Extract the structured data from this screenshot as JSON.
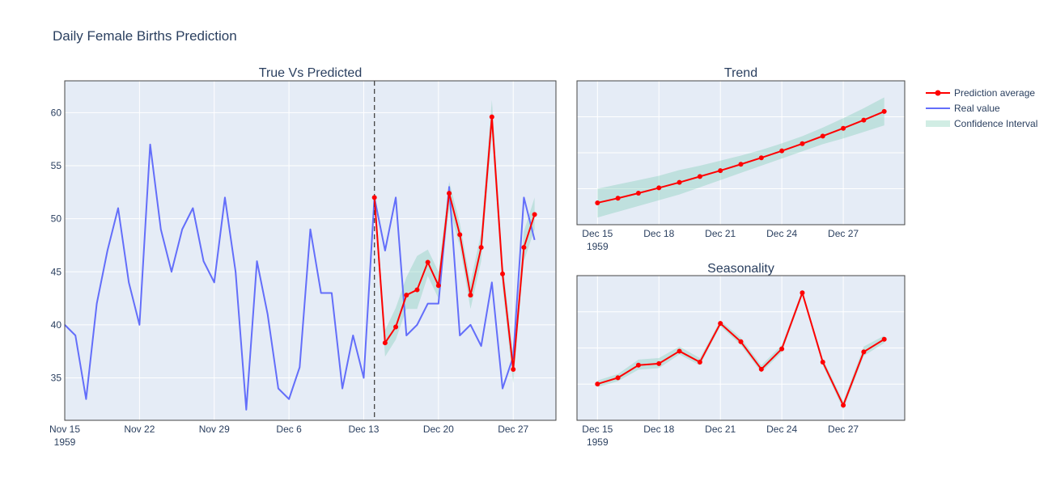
{
  "figure": {
    "title": "Daily Female Births Prediction"
  },
  "colors": {
    "real": "#636efa",
    "prediction": "#ff0000",
    "confidence": "rgba(102,194,165,0.3)",
    "plot_bg": "#e5ecf6",
    "grid": "#ffffff",
    "divider": "#444444"
  },
  "legend": {
    "prediction": "Prediction average",
    "real": "Real value",
    "confidence": "Confidence Interval"
  },
  "chart_data": [
    {
      "type": "line",
      "name": "true_vs_predicted",
      "title": "True Vs Predicted",
      "x_dates_start": "1959-11-15",
      "xlim": [
        "1959-11-15",
        "1959-12-31"
      ],
      "ylim": [
        31,
        63
      ],
      "xticks": [
        {
          "date": "1959-11-15",
          "label": "Nov 15",
          "sub": "1959"
        },
        {
          "date": "1959-11-22",
          "label": "Nov 22"
        },
        {
          "date": "1959-11-29",
          "label": "Nov 29"
        },
        {
          "date": "1959-12-06",
          "label": "Dec 6"
        },
        {
          "date": "1959-12-13",
          "label": "Dec 13"
        },
        {
          "date": "1959-12-20",
          "label": "Dec 20"
        },
        {
          "date": "1959-12-27",
          "label": "Dec 27"
        }
      ],
      "yticks": [
        35,
        40,
        45,
        50,
        55,
        60
      ],
      "divider_date": "1959-12-14",
      "real_values": [
        40,
        39,
        33,
        42,
        47,
        51,
        44,
        40,
        57,
        49,
        45,
        49,
        51,
        46,
        44,
        52,
        45,
        32,
        46,
        41,
        34,
        33,
        36,
        49,
        43,
        43,
        34,
        39,
        35,
        52,
        47,
        52,
        39,
        40,
        42,
        42,
        53,
        39,
        40,
        38,
        44,
        34,
        37,
        52,
        48
      ],
      "prediction_start": "1959-12-14",
      "prediction": [
        52.0,
        38.3,
        39.8,
        42.8,
        43.3,
        45.9,
        43.7,
        52.4,
        48.5,
        42.8,
        47.3,
        59.6,
        44.8,
        35.8,
        47.3,
        50.4
      ],
      "lower": [
        51.0,
        37.0,
        38.6,
        41.5,
        41.5,
        44.6,
        42.5,
        51.0,
        47.4,
        41.5,
        46.0,
        58.0,
        43.5,
        34.5,
        46.0,
        49.0
      ],
      "upper": [
        53.0,
        39.5,
        41.6,
        44.5,
        46.5,
        47.1,
        45.0,
        53.5,
        49.6,
        44.0,
        48.7,
        61.2,
        46.0,
        37.0,
        48.8,
        52.0
      ]
    },
    {
      "type": "line",
      "name": "trend",
      "title": "Trend",
      "xlim": [
        "1959-12-14",
        "1959-12-30"
      ],
      "ylim": [
        0,
        1
      ],
      "xticks": [
        {
          "date": "1959-12-15",
          "label": "Dec 15",
          "sub": "1959"
        },
        {
          "date": "1959-12-18",
          "label": "Dec 18"
        },
        {
          "date": "1959-12-21",
          "label": "Dec 21"
        },
        {
          "date": "1959-12-24",
          "label": "Dec 24"
        },
        {
          "date": "1959-12-27",
          "label": "Dec 27"
        }
      ],
      "prediction_start": "1959-12-15",
      "prediction": [
        0.152,
        0.184,
        0.219,
        0.256,
        0.294,
        0.335,
        0.376,
        0.42,
        0.465,
        0.513,
        0.563,
        0.616,
        0.67,
        0.727,
        0.787
      ],
      "lower": [
        0.05,
        0.09,
        0.13,
        0.17,
        0.21,
        0.26,
        0.31,
        0.36,
        0.41,
        0.46,
        0.51,
        0.56,
        0.6,
        0.645,
        0.69
      ],
      "upper": [
        0.25,
        0.28,
        0.31,
        0.34,
        0.38,
        0.41,
        0.445,
        0.48,
        0.52,
        0.565,
        0.615,
        0.675,
        0.74,
        0.81,
        0.885
      ]
    },
    {
      "type": "line",
      "name": "seasonality",
      "title": "Seasonality",
      "xlim": [
        "1959-12-14",
        "1959-12-30"
      ],
      "ylim": [
        0,
        1
      ],
      "xticks": [
        {
          "date": "1959-12-15",
          "label": "Dec 15",
          "sub": "1959"
        },
        {
          "date": "1959-12-18",
          "label": "Dec 18"
        },
        {
          "date": "1959-12-21",
          "label": "Dec 21"
        },
        {
          "date": "1959-12-24",
          "label": "Dec 24"
        },
        {
          "date": "1959-12-27",
          "label": "Dec 27"
        }
      ],
      "prediction_start": "1959-12-15",
      "prediction": [
        0.251,
        0.294,
        0.381,
        0.392,
        0.478,
        0.402,
        0.67,
        0.543,
        0.353,
        0.494,
        0.881,
        0.402,
        0.104,
        0.473,
        0.56
      ],
      "lower": [
        0.23,
        0.27,
        0.35,
        0.36,
        0.455,
        0.38,
        0.65,
        0.52,
        0.33,
        0.47,
        0.86,
        0.38,
        0.075,
        0.445,
        0.535
      ],
      "upper": [
        0.275,
        0.32,
        0.42,
        0.43,
        0.51,
        0.43,
        0.69,
        0.57,
        0.38,
        0.52,
        0.9,
        0.425,
        0.13,
        0.51,
        0.585
      ]
    }
  ]
}
